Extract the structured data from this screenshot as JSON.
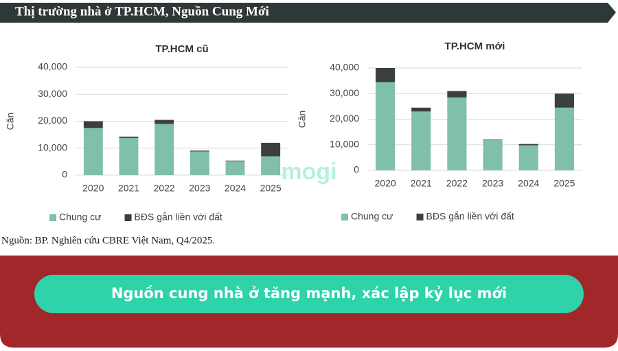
{
  "header": {
    "title": "Thị trường nhà ở TP.HCM, Nguồn Cung Mới"
  },
  "chart_data": [
    {
      "type": "bar",
      "stacked": true,
      "title": "TP.HCM cũ",
      "y_label": "Căn",
      "categories": [
        "2020",
        "2021",
        "2022",
        "2023",
        "2024",
        "2025"
      ],
      "series": [
        {
          "name": "Chung cư",
          "color": "#80bfa9",
          "values": [
            17500,
            13800,
            19000,
            8800,
            5200,
            7000
          ]
        },
        {
          "name": "BĐS gắn liền với đất",
          "color": "#3c3f3f",
          "values": [
            2500,
            500,
            1500,
            300,
            200,
            5000
          ]
        }
      ],
      "ylim": [
        0,
        40000
      ],
      "yticks": [
        0,
        {
          "value": 10000,
          "label": "10,000"
        },
        {
          "value": 20000,
          "label": "20,000"
        },
        {
          "value": 30000,
          "label": "30,000"
        },
        {
          "value": 40000,
          "label": "40,000"
        }
      ],
      "grid": true,
      "legend": "bottom"
    },
    {
      "type": "bar",
      "stacked": true,
      "title": "TP.HCM mới",
      "y_label": "Căn",
      "categories": [
        "2020",
        "2021",
        "2022",
        "2023",
        "2024",
        "2025"
      ],
      "series": [
        {
          "name": "Chung cư",
          "color": "#80bfa9",
          "values": [
            34500,
            23000,
            28500,
            11800,
            9800,
            24500
          ]
        },
        {
          "name": "BĐS gắn liền với đất",
          "color": "#3c3f3f",
          "values": [
            5500,
            1500,
            2500,
            200,
            500,
            5500
          ]
        }
      ],
      "ylim": [
        0,
        40000
      ],
      "yticks": [
        0,
        {
          "value": 10000,
          "label": "10,000"
        },
        {
          "value": 20000,
          "label": "20,000"
        },
        {
          "value": 30000,
          "label": "30,000"
        },
        {
          "value": 40000,
          "label": "40,000"
        }
      ],
      "grid": true,
      "legend": "bottom"
    }
  ],
  "watermark": "mogi",
  "source": "Nguồn: BP. Nghiên cứu CBRE Việt Nam, Q4/2025.",
  "banner": "Nguồn cung nhà ở tăng mạnh, xác lập kỷ lục mới"
}
